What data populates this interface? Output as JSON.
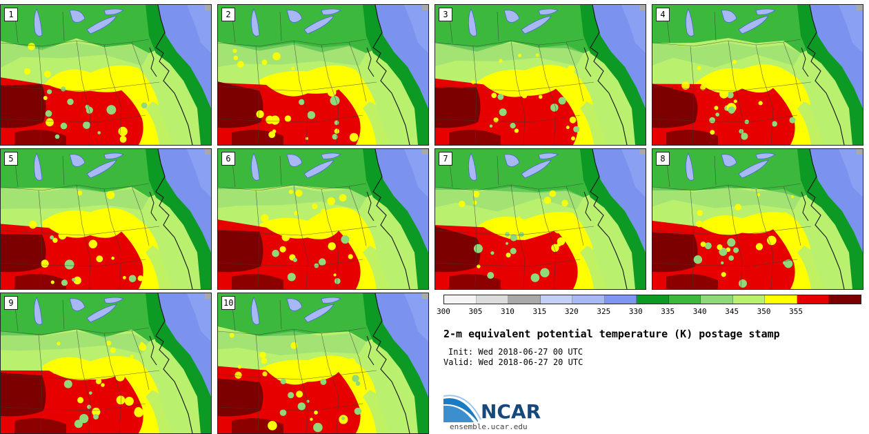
{
  "title": "2-m equivalent potential temperature (K) postage stamp",
  "init": "Init: Wed 2018-06-27 00 UTC",
  "valid": "Valid: Wed 2018-06-27 20 UTC",
  "members": [
    "1",
    "2",
    "3",
    "4",
    "5",
    "6",
    "7",
    "8",
    "9",
    "10"
  ],
  "colorbar": {
    "ticks": [
      "300",
      "305",
      "310",
      "315",
      "320",
      "325",
      "330",
      "335",
      "340",
      "345",
      "350",
      "355"
    ],
    "colors": [
      "#f5f5f5",
      "#dcdcdc",
      "#a9a9a9",
      "#c4cff8",
      "#a8b8f5",
      "#7f96f0",
      "#0d9a24",
      "#3cb83c",
      "#8fd97a",
      "#b9f06e",
      "#ffff00",
      "#e60000",
      "#7d0000"
    ]
  },
  "colors": {
    "ocean": "#7b93ee",
    "ocean_deep": "#8aa0f2",
    "coastal": "#0d9a24",
    "north": "#3cb83c",
    "midlight": "#8fd97a",
    "mid": "#b9f06e",
    "warm": "#ffff00",
    "hot": "#e60000",
    "hottest": "#7d0000",
    "lake": "#a8b8f5",
    "canada_gray": "#a9a9a9"
  },
  "logo": {
    "text": "NCAR",
    "site": "ensemble.ucar.edu",
    "brand": "#17487c",
    "swoosh": "#1b7ac4"
  }
}
